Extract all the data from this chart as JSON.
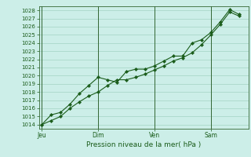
{
  "background_color": "#cceee8",
  "plot_bg_color": "#cceee8",
  "grid_color": "#99ccbb",
  "line_color": "#1a5c1a",
  "marker_color": "#1a5c1a",
  "xlabel": "Pression niveau de la mer( hPa )",
  "yticks": [
    1014,
    1015,
    1016,
    1017,
    1018,
    1019,
    1020,
    1021,
    1022,
    1023,
    1024,
    1025,
    1026,
    1027,
    1028
  ],
  "ylim": [
    1013.5,
    1028.5
  ],
  "xtick_labels": [
    "Jeu",
    "Dim",
    "Ven",
    "Sam"
  ],
  "xtick_positions": [
    0,
    6,
    12,
    18
  ],
  "vline_positions": [
    0,
    6,
    12,
    18
  ],
  "xlim": [
    -0.3,
    22.0
  ],
  "series1_x": [
    0,
    1,
    2,
    3,
    4,
    5,
    6,
    7,
    8,
    9,
    10,
    11,
    12,
    13,
    14,
    15,
    16,
    17,
    18,
    19,
    20,
    21
  ],
  "series1_y": [
    1014.0,
    1015.2,
    1015.5,
    1016.5,
    1017.8,
    1018.8,
    1019.8,
    1019.5,
    1019.2,
    1020.5,
    1020.8,
    1020.8,
    1021.2,
    1021.8,
    1022.4,
    1022.4,
    1024.0,
    1024.4,
    1025.3,
    1026.6,
    1028.1,
    1027.5
  ],
  "series2_x": [
    0,
    1,
    2,
    3,
    4,
    5,
    6,
    7,
    8,
    9,
    10,
    11,
    12,
    13,
    14,
    15,
    16,
    17,
    18,
    19,
    20,
    21
  ],
  "series2_y": [
    1014.0,
    1014.5,
    1015.0,
    1016.0,
    1016.8,
    1017.5,
    1018.0,
    1018.8,
    1019.5,
    1019.5,
    1019.8,
    1020.2,
    1020.7,
    1021.2,
    1021.8,
    1022.2,
    1022.8,
    1023.8,
    1025.0,
    1026.3,
    1027.8,
    1027.3
  ],
  "xlabel_fontsize": 6.5,
  "ytick_fontsize": 5.0,
  "xtick_fontsize": 5.5,
  "spine_color": "#336633",
  "linewidth": 0.8,
  "markersize": 2.2
}
